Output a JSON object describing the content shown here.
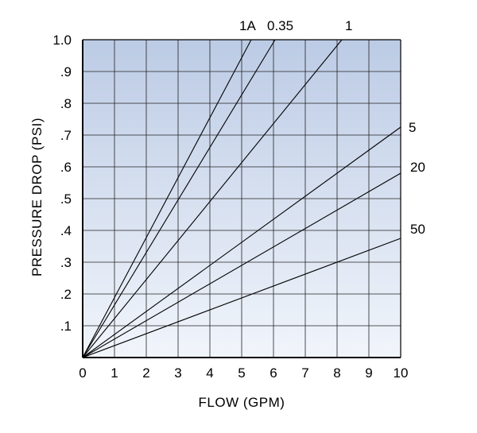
{
  "chart_data": {
    "type": "line",
    "xlabel": "FLOW (GPM)",
    "ylabel": "PRESSURE DROP (PSI)",
    "xlim": [
      0,
      10
    ],
    "ylim": [
      0,
      1.0
    ],
    "grid": true,
    "x_ticks": [
      "0",
      "1",
      "2",
      "3",
      "4",
      "5",
      "6",
      "7",
      "8",
      "9",
      "10"
    ],
    "y_ticks": [
      ".1",
      ".2",
      ".3",
      ".4",
      ".5",
      ".6",
      ".7",
      ".8",
      ".9",
      "1.0"
    ],
    "background_gradient": {
      "top": "#bccbe5",
      "bottom": "#f1f5fb"
    },
    "line_color": "#000000",
    "series": [
      {
        "name": "1A",
        "x": [
          0,
          5.3
        ],
        "y": [
          0,
          1.0
        ]
      },
      {
        "name": "0.35",
        "x": [
          0,
          6.05
        ],
        "y": [
          0,
          1.0
        ]
      },
      {
        "name": "1",
        "x": [
          0,
          8.15
        ],
        "y": [
          0,
          1.0
        ]
      },
      {
        "name": "5",
        "x": [
          0,
          10
        ],
        "y": [
          0,
          0.725
        ]
      },
      {
        "name": "20",
        "x": [
          0,
          10
        ],
        "y": [
          0,
          0.58
        ]
      },
      {
        "name": "50",
        "x": [
          0,
          10
        ],
        "y": [
          0,
          0.375
        ]
      }
    ]
  }
}
